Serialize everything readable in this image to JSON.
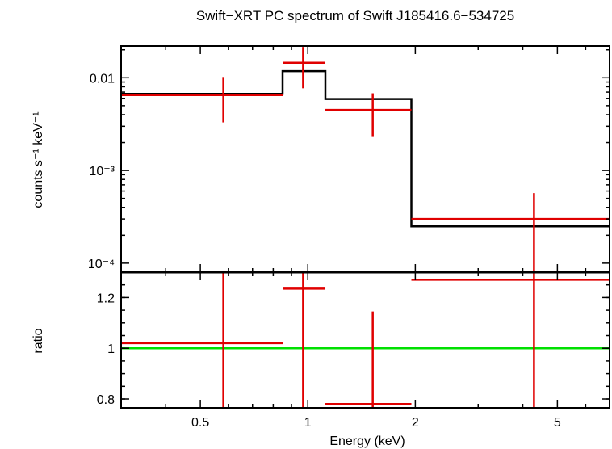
{
  "chart_data": [
    {
      "type": "line",
      "panel": "spectrum",
      "title": "Swift−XRT PC spectrum of Swift J185416.6−534725",
      "ylabel": "counts s⁻¹ keV⁻¹",
      "yscale": "log",
      "xscale": "log",
      "xlim": [
        0.3,
        7.0
      ],
      "ylim": [
        8e-05,
        0.022
      ],
      "yticks": [
        {
          "value": 0.01,
          "label": "0.01"
        },
        {
          "value": 0.001,
          "label": "10⁻³"
        },
        {
          "value": 0.0001,
          "label": "10⁻⁴"
        }
      ],
      "series": [
        {
          "kind": "data",
          "color": "#e00000",
          "points": [
            {
              "x": 0.58,
              "xlo": 0.3,
              "xhi": 0.85,
              "y": 0.0065,
              "ylo": 0.0033,
              "yhi": 0.0102
            },
            {
              "x": 0.97,
              "xlo": 0.85,
              "xhi": 1.12,
              "y": 0.0145,
              "ylo": 0.0077,
              "yhi": 0.0215
            },
            {
              "x": 1.52,
              "xlo": 1.12,
              "xhi": 1.95,
              "y": 0.0045,
              "ylo": 0.0023,
              "yhi": 0.0068
            },
            {
              "x": 4.3,
              "xlo": 1.95,
              "xhi": 7.0,
              "y": 0.0003,
              "ylo": 8e-05,
              "yhi": 0.00057
            }
          ]
        },
        {
          "kind": "model",
          "color": "#000000",
          "steps": [
            {
              "xlo": 0.3,
              "xhi": 0.85,
              "y": 0.0067
            },
            {
              "xlo": 0.85,
              "xhi": 1.12,
              "y": 0.0118
            },
            {
              "xlo": 1.12,
              "xhi": 1.95,
              "y": 0.0059
            },
            {
              "xlo": 1.95,
              "xhi": 7.0,
              "y": 0.00025
            }
          ]
        }
      ]
    },
    {
      "type": "scatter",
      "panel": "ratio",
      "ylabel": "ratio",
      "xlabel": "Energy (keV)",
      "xscale": "log",
      "xlim": [
        0.3,
        7.0
      ],
      "ylim": [
        0.765,
        1.3
      ],
      "xticks": [
        {
          "value": 0.5,
          "label": "0.5"
        },
        {
          "value": 1,
          "label": "1"
        },
        {
          "value": 2,
          "label": "2"
        },
        {
          "value": 5,
          "label": "5"
        }
      ],
      "yticks": [
        {
          "value": 0.8,
          "label": "0.8"
        },
        {
          "value": 1,
          "label": "1"
        },
        {
          "value": 1.2,
          "label": "1.2"
        }
      ],
      "reference_line": {
        "y": 1,
        "color": "#00e000"
      },
      "series": [
        {
          "kind": "ratio",
          "color": "#e00000",
          "points": [
            {
              "x": 0.58,
              "xlo": 0.3,
              "xhi": 0.85,
              "y": 1.02,
              "ylo": 0.765,
              "yhi": 1.3
            },
            {
              "x": 0.97,
              "xlo": 0.85,
              "xhi": 1.12,
              "y": 1.235,
              "ylo": 0.765,
              "yhi": 1.3
            },
            {
              "x": 1.52,
              "xlo": 1.12,
              "xhi": 1.95,
              "y": 0.78,
              "ylo": 0.765,
              "yhi": 1.145
            },
            {
              "x": 4.3,
              "xlo": 1.95,
              "xhi": 7.0,
              "y": 1.27,
              "ylo": 0.765,
              "yhi": 1.3
            }
          ]
        }
      ]
    }
  ]
}
